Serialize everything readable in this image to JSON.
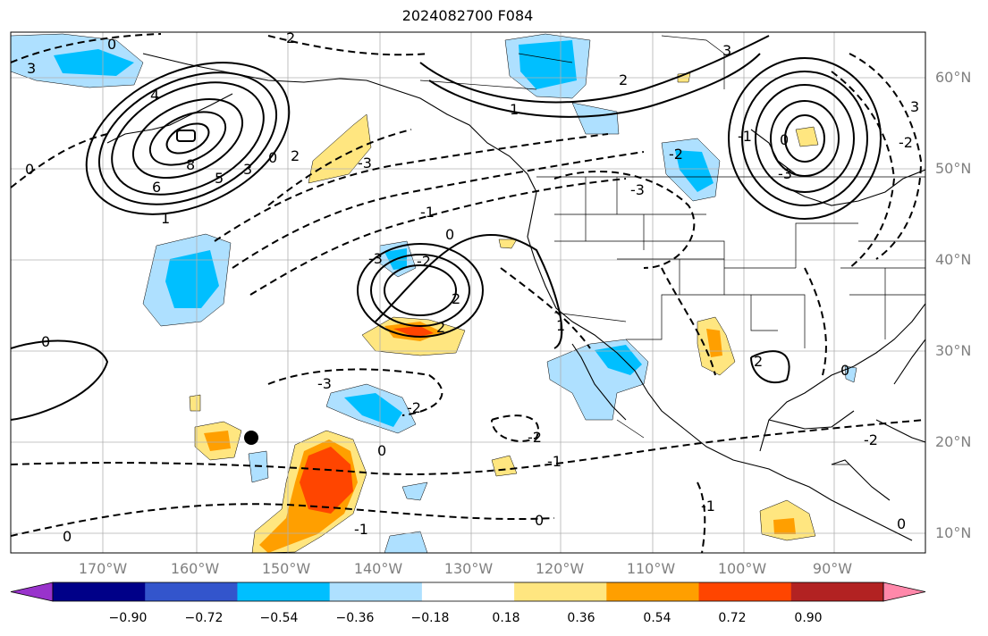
{
  "title": "2024082700 F084",
  "latitude_labels": [
    "60°N",
    "50°N",
    "40°N",
    "30°N",
    "20°N",
    "10°N"
  ],
  "longitude_labels": [
    "170°W",
    "160°W",
    "150°W",
    "140°W",
    "130°W",
    "120°W",
    "110°W",
    "100°W",
    "90°W"
  ],
  "contour_labels": [
    "0",
    "2",
    "3",
    "4",
    "8",
    "6",
    "5",
    "1",
    "0",
    "3",
    "0",
    "2",
    "2",
    "1",
    "0",
    "-2",
    "-3",
    "-1",
    "-3",
    "-2",
    "-1",
    "0",
    "-3",
    "3",
    "2",
    "1",
    "0",
    "2",
    "0",
    "-1",
    "0",
    "-2",
    "-3",
    "-2",
    "-1",
    "0",
    "-1",
    "-2",
    "0",
    "2",
    "0",
    "3",
    "-2",
    "-3"
  ],
  "colorbar": {
    "tick_labels": [
      "−0.90",
      "−0.72",
      "−0.54",
      "−0.36",
      "−0.18",
      "0.18",
      "0.36",
      "0.54",
      "0.72",
      "0.90"
    ],
    "colors": [
      "#9933cc",
      "#000088",
      "#3355cc",
      "#00bfff",
      "#aee0ff",
      "#ffffff",
      "#ffe680",
      "#ff9f00",
      "#ff4500",
      "#b22222",
      "#ff88aa"
    ]
  },
  "colors": {
    "positive_light": "#ffe680",
    "positive_mid": "#ff9f00",
    "positive_strong": "#ff4500",
    "negative_light": "#aee0ff",
    "negative_mid": "#00bfff",
    "contour": "#000000",
    "grid": "#b0b0b0",
    "axis_label": "#808080"
  }
}
